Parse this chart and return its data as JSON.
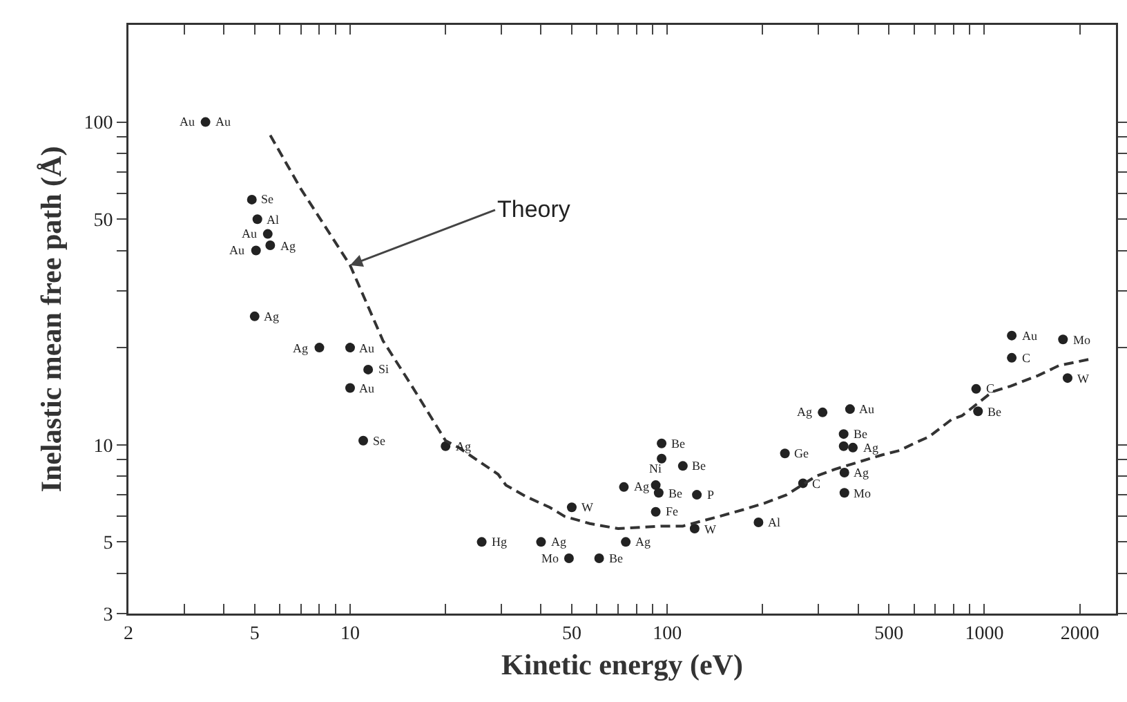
{
  "chart_data": {
    "type": "scatter",
    "xlabel": "Kinetic energy (eV)",
    "ylabel": "Inelastic mean free path (Å)",
    "log": "xy",
    "grid": false,
    "xlim": [
      2,
      2600
    ],
    "ylim": [
      3,
      200
    ],
    "xticks": [
      2,
      {
        "value": 3,
        "label": null
      },
      {
        "value": 4,
        "label": null
      },
      5,
      {
        "value": 6,
        "label": null
      },
      {
        "value": 7,
        "label": null
      },
      {
        "value": 8,
        "label": null
      },
      {
        "value": 9,
        "label": null
      },
      10,
      {
        "value": 20,
        "label": null
      },
      {
        "value": 30,
        "label": null
      },
      {
        "value": 40,
        "label": null
      },
      50,
      {
        "value": 60,
        "label": null
      },
      {
        "value": 70,
        "label": null
      },
      {
        "value": 80,
        "label": null
      },
      {
        "value": 90,
        "label": null
      },
      100,
      {
        "value": 200,
        "label": null
      },
      {
        "value": 300,
        "label": null
      },
      {
        "value": 400,
        "label": null
      },
      500,
      {
        "value": 600,
        "label": null
      },
      {
        "value": 700,
        "label": null
      },
      {
        "value": 800,
        "label": null
      },
      {
        "value": 900,
        "label": null
      },
      1000,
      2000
    ],
    "yticks": [
      3,
      {
        "value": 4,
        "label": null
      },
      5,
      {
        "value": 6,
        "label": null
      },
      {
        "value": 7,
        "label": null
      },
      {
        "value": 8,
        "label": null
      },
      {
        "value": 9,
        "label": null
      },
      10,
      {
        "value": 20,
        "label": null
      },
      {
        "value": 30,
        "label": null
      },
      {
        "value": 40,
        "label": null
      },
      50,
      {
        "value": 60,
        "label": null
      },
      {
        "value": 70,
        "label": null
      },
      {
        "value": 80,
        "label": null
      },
      {
        "value": 90,
        "label": null
      },
      100
    ],
    "series": [
      {
        "color": "#222222",
        "marker": "circle",
        "x": [
          3.5,
          4.9,
          5.1,
          5.5,
          5.6,
          5.05,
          5,
          8,
          10,
          11.4,
          10,
          11,
          20,
          26,
          40,
          49,
          61,
          50,
          74,
          73,
          92,
          94,
          96,
          96,
          112,
          124,
          92,
          122,
          235,
          194,
          268,
          309,
          377,
          360,
          360,
          385,
          362,
          362,
          942,
          955,
          1220,
          1220,
          1770,
          1830
        ],
        "values": [
          100,
          57.5,
          50,
          45,
          41.5,
          40,
          25,
          20,
          20,
          17.1,
          15,
          10.3,
          9.9,
          5,
          5,
          4.45,
          4.45,
          6.4,
          5,
          7.4,
          7.5,
          7.1,
          10.1,
          9.06,
          8.6,
          7,
          6.2,
          5.5,
          9.4,
          5.75,
          7.6,
          12.6,
          12.9,
          10.8,
          9.9,
          9.8,
          8.2,
          7.1,
          14.9,
          12.7,
          21.8,
          18.6,
          21.2,
          16.1
        ]
      },
      {
        "type": "line",
        "color": "#333333",
        "marker": "none",
        "line_style": "dashed",
        "x": [
          5.6,
          7,
          10,
          12.7,
          15.6,
          20,
          22,
          29.3,
          31,
          36,
          42.6,
          47.5,
          57,
          70,
          96,
          112,
          146,
          174,
          203,
          238,
          295,
          338,
          475,
          540,
          600,
          670,
          790,
          850,
          1060,
          1210,
          1480,
          1720,
          2200
        ],
        "values": [
          91,
          62,
          36,
          21,
          15.3,
          10.3,
          9.8,
          8.1,
          7.5,
          6.9,
          6.4,
          6,
          5.7,
          5.5,
          5.6,
          5.6,
          6,
          6.3,
          6.6,
          7,
          8,
          8.4,
          9.3,
          9.6,
          10.1,
          10.6,
          12,
          12.3,
          14.6,
          15.2,
          16.4,
          17.6,
          18.5
        ]
      }
    ],
    "annotations": [
      {
        "text": "Theory",
        "x": 10,
        "y": 36
      },
      {
        "text": "Au",
        "x": 3.5,
        "y": 100
      },
      {
        "text": "Au",
        "x": 3.5,
        "y": 100
      },
      {
        "text": "Se",
        "x": 4.9,
        "y": 57.5
      },
      {
        "text": "Al",
        "x": 5.1,
        "y": 50
      },
      {
        "text": "Au",
        "x": 5.5,
        "y": 45
      },
      {
        "text": "Ag",
        "x": 5.6,
        "y": 41.5
      },
      {
        "text": "Au",
        "x": 5.05,
        "y": 40
      },
      {
        "text": "Ag",
        "x": 5,
        "y": 25
      },
      {
        "text": "Ag",
        "x": 8,
        "y": 20
      },
      {
        "text": "Au",
        "x": 10,
        "y": 20
      },
      {
        "text": "Si",
        "x": 11.4,
        "y": 17.1
      },
      {
        "text": "Au",
        "x": 10,
        "y": 15
      },
      {
        "text": "Se",
        "x": 11,
        "y": 10.3
      },
      {
        "text": "Ag",
        "x": 20,
        "y": 9.9
      },
      {
        "text": "Hg",
        "x": 26,
        "y": 5
      },
      {
        "text": "Ag",
        "x": 40,
        "y": 5
      },
      {
        "text": "Mo",
        "x": 49,
        "y": 4.45
      },
      {
        "text": "Be",
        "x": 61,
        "y": 4.45
      },
      {
        "text": "W",
        "x": 50,
        "y": 6.4
      },
      {
        "text": "Ag",
        "x": 74,
        "y": 5
      },
      {
        "text": "Ag",
        "x": 73,
        "y": 7.4
      },
      {
        "text": "Ni",
        "x": 92,
        "y": 7.5
      },
      {
        "text": "Be",
        "x": 94,
        "y": 7.1
      },
      {
        "text": "Be",
        "x": 96,
        "y": 10.1
      },
      {
        "text": "Be",
        "x": 112,
        "y": 8.6
      },
      {
        "text": "P",
        "x": 124,
        "y": 7
      },
      {
        "text": "Fe",
        "x": 92,
        "y": 6.2
      },
      {
        "text": "W",
        "x": 122,
        "y": 5.5
      },
      {
        "text": "Ge",
        "x": 235,
        "y": 9.4
      },
      {
        "text": "Al",
        "x": 194,
        "y": 5.75
      },
      {
        "text": "C",
        "x": 268,
        "y": 7.6
      },
      {
        "text": "Ag",
        "x": 309,
        "y": 12.6
      },
      {
        "text": "Au",
        "x": 377,
        "y": 12.9
      },
      {
        "text": "Be",
        "x": 360,
        "y": 10.8
      },
      {
        "text": "Ag",
        "x": 385,
        "y": 9.8
      },
      {
        "text": "Ag",
        "x": 362,
        "y": 8.2
      },
      {
        "text": "Mo",
        "x": 362,
        "y": 7.1
      },
      {
        "text": "C",
        "x": 942,
        "y": 14.9
      },
      {
        "text": "Be",
        "x": 955,
        "y": 12.7
      },
      {
        "text": "Au",
        "x": 1220,
        "y": 21.8
      },
      {
        "text": "C",
        "x": 1220,
        "y": 18.6
      },
      {
        "text": "Mo",
        "x": 1770,
        "y": 21.2
      },
      {
        "text": "W",
        "x": 1830,
        "y": 16.1
      }
    ]
  }
}
